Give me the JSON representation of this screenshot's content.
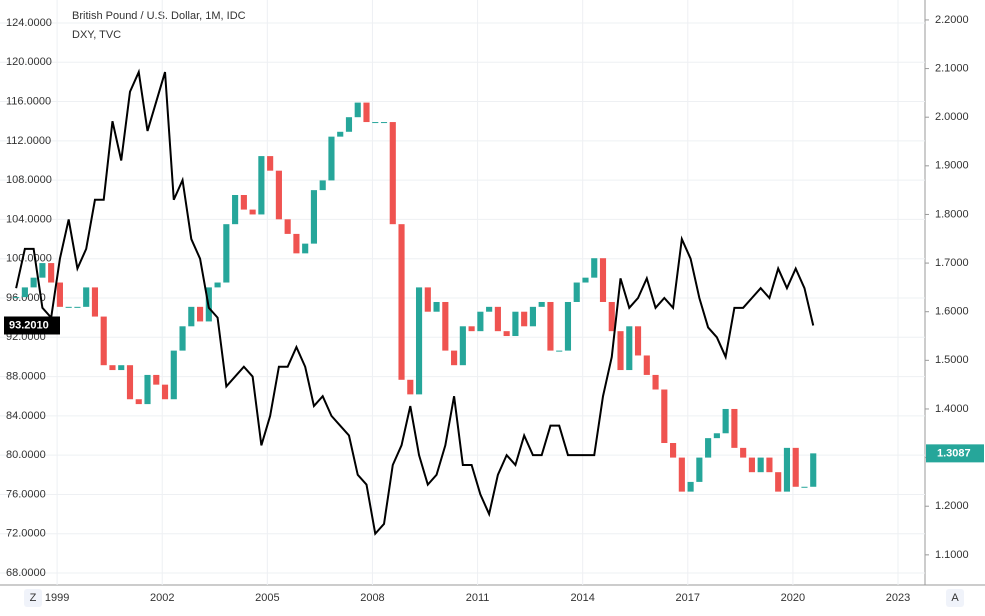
{
  "chart_data": {
    "type": "candlestick",
    "legend": [
      "British Pound / U.S. Dollar, 1M, IDC",
      "DXY, TVC"
    ],
    "x": [
      1997.83,
      1998.08,
      1998.33,
      1998.58,
      1998.83,
      1999.08,
      1999.33,
      1999.58,
      1999.83,
      2000.08,
      2000.33,
      2000.58,
      2000.83,
      2001.08,
      2001.33,
      2001.58,
      2001.83,
      2002.08,
      2002.33,
      2002.58,
      2002.83,
      2003.08,
      2003.33,
      2003.58,
      2003.83,
      2004.08,
      2004.33,
      2004.58,
      2004.83,
      2005.08,
      2005.33,
      2005.58,
      2005.83,
      2006.08,
      2006.33,
      2006.58,
      2006.83,
      2007.08,
      2007.33,
      2007.58,
      2007.83,
      2008.08,
      2008.33,
      2008.58,
      2008.83,
      2009.08,
      2009.33,
      2009.58,
      2009.83,
      2010.08,
      2010.33,
      2010.58,
      2010.83,
      2011.08,
      2011.33,
      2011.58,
      2011.83,
      2012.08,
      2012.33,
      2012.58,
      2012.83,
      2013.08,
      2013.33,
      2013.58,
      2013.83,
      2014.08,
      2014.33,
      2014.58,
      2014.83,
      2015.08,
      2015.33,
      2015.58,
      2015.83,
      2016.08,
      2016.33,
      2016.58,
      2016.83,
      2017.08,
      2017.33,
      2017.58,
      2017.83,
      2018.08,
      2018.33,
      2018.58,
      2018.83,
      2019.08,
      2019.33,
      2019.58,
      2019.83,
      2020.08,
      2020.33,
      2020.58
    ],
    "series": [
      {
        "name": "British Pound / U.S. Dollar, 1M, IDC",
        "axis": "y2",
        "up_color": "#26a69a",
        "down_color": "#ef5350",
        "last_value_label": "1.3087",
        "values": [
          1.63,
          1.65,
          1.67,
          1.7,
          1.66,
          1.61,
          1.61,
          1.61,
          1.65,
          1.59,
          1.49,
          1.48,
          1.49,
          1.42,
          1.41,
          1.47,
          1.45,
          1.42,
          1.52,
          1.57,
          1.61,
          1.58,
          1.65,
          1.66,
          1.78,
          1.84,
          1.81,
          1.8,
          1.92,
          1.89,
          1.79,
          1.76,
          1.72,
          1.74,
          1.85,
          1.87,
          1.96,
          1.97,
          2.0,
          2.03,
          1.99,
          1.99,
          1.99,
          1.78,
          1.46,
          1.43,
          1.65,
          1.6,
          1.62,
          1.52,
          1.49,
          1.57,
          1.56,
          1.6,
          1.61,
          1.56,
          1.55,
          1.6,
          1.57,
          1.61,
          1.62,
          1.52,
          1.52,
          1.62,
          1.66,
          1.67,
          1.71,
          1.62,
          1.56,
          1.48,
          1.57,
          1.51,
          1.47,
          1.44,
          1.33,
          1.3,
          1.23,
          1.25,
          1.3,
          1.34,
          1.35,
          1.4,
          1.32,
          1.3,
          1.27,
          1.3,
          1.27,
          1.23,
          1.32,
          1.24,
          1.24,
          1.3087
        ]
      },
      {
        "name": "DXY, TVC",
        "axis": "y",
        "color": "#000000",
        "last_value_label": "93.2010",
        "values": [
          97,
          101,
          101,
          95,
          94,
          100,
          104,
          99,
          101,
          106,
          106,
          114,
          110,
          117,
          119,
          113,
          116,
          119,
          106,
          108,
          102,
          100,
          95,
          94,
          87,
          88,
          89,
          88,
          81,
          84,
          89,
          89,
          91,
          89,
          85,
          86,
          84,
          83,
          82,
          78,
          77,
          72,
          73,
          79,
          81,
          85,
          80,
          77,
          78,
          81,
          86,
          79,
          79,
          76,
          74,
          78,
          80,
          79,
          82,
          80,
          80,
          83,
          83,
          80,
          80,
          80,
          80,
          86,
          90,
          98,
          95,
          96,
          98,
          95,
          96,
          95,
          102,
          100,
          96,
          93,
          92,
          90,
          95,
          95,
          96,
          97,
          96,
          99,
          97,
          99,
          97,
          93.201
        ]
      }
    ],
    "xlim": [
      1997.37,
      2023.77
    ],
    "xticks": [
      1999,
      2002,
      2005,
      2008,
      2011,
      2014,
      2017,
      2020,
      2023
    ],
    "ylim": [
      66.78,
      126.34
    ],
    "yticks": [
      {
        "value": 68,
        "label": "68.0000"
      },
      {
        "value": 72,
        "label": "72.0000"
      },
      {
        "value": 76,
        "label": "76.0000"
      },
      {
        "value": 80,
        "label": "80.0000"
      },
      {
        "value": 84,
        "label": "84.0000"
      },
      {
        "value": 88,
        "label": "88.0000"
      },
      {
        "value": 92,
        "label": "92.0000"
      },
      {
        "value": 96,
        "label": "96.0000"
      },
      {
        "value": 100,
        "label": "100.0000"
      },
      {
        "value": 104,
        "label": "104.0000"
      },
      {
        "value": 108,
        "label": "108.0000"
      },
      {
        "value": 112,
        "label": "112.0000"
      },
      {
        "value": 116,
        "label": "116.0000"
      },
      {
        "value": 120,
        "label": "120.0000"
      },
      {
        "value": 124,
        "label": "124.0000"
      }
    ],
    "y2lim": [
      1.038,
      2.241
    ],
    "y2ticks": [
      {
        "value": 1.1,
        "label": "1.1000"
      },
      {
        "value": 1.2,
        "label": "1.2000"
      },
      {
        "value": 1.3,
        "label": "1.3000"
      },
      {
        "value": 1.4,
        "label": "1.4000"
      },
      {
        "value": 1.5,
        "label": "1.5000"
      },
      {
        "value": 1.6,
        "label": "1.6000"
      },
      {
        "value": 1.7,
        "label": "1.7000"
      },
      {
        "value": 1.8,
        "label": "1.8000"
      },
      {
        "value": 1.9,
        "label": "1.9000"
      },
      {
        "value": 2.0,
        "label": "2.0000"
      },
      {
        "value": 2.1,
        "label": "2.1000"
      },
      {
        "value": 2.2,
        "label": "2.2000"
      }
    ],
    "grid": true
  },
  "ui": {
    "timezone_button": "Z",
    "auto_button": "A"
  }
}
